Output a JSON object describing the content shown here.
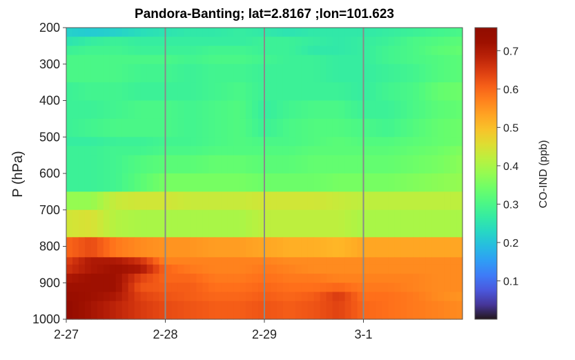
{
  "chart_data": {
    "type": "heatmap",
    "title": "Pandora-Banting; lat=2.8167 ;lon=101.623",
    "ylabel": "P (hPa)",
    "xlabel": "",
    "colorbar_label": "CO-IND (ppb)",
    "colormap": "turbo",
    "x_range_days": [
      0,
      4
    ],
    "x_ticks": [
      {
        "label": "2-27",
        "day": 0
      },
      {
        "label": "2-28",
        "day": 1
      },
      {
        "label": "2-29",
        "day": 2
      },
      {
        "label": "3-1",
        "day": 3
      }
    ],
    "vertical_lines_days": [
      1,
      2,
      3
    ],
    "y_range": [
      200,
      1000
    ],
    "y_reversed": true,
    "y_ticks": [
      200,
      300,
      400,
      500,
      600,
      700,
      800,
      900,
      1000
    ],
    "colorbar_range": [
      0,
      0.76
    ],
    "colorbar_ticks": [
      0.1,
      0.2,
      0.3,
      0.4,
      0.5,
      0.6,
      0.7
    ],
    "layer_edges_hpa": [
      200,
      225,
      250,
      275,
      300,
      350,
      400,
      450,
      500,
      525,
      550,
      600,
      650,
      700,
      775,
      830,
      850,
      875,
      900,
      925,
      950,
      1000
    ],
    "column_times_days": [
      0.0,
      0.25,
      0.5,
      0.75,
      1.0,
      1.25,
      1.5,
      1.75,
      2.0,
      2.25,
      2.5,
      2.75,
      3.0,
      3.25,
      3.5,
      3.75,
      4.0
    ],
    "values": [
      [
        0.22,
        0.21,
        0.22,
        0.24,
        0.25,
        0.26,
        0.26,
        0.27,
        0.26,
        0.25,
        0.26,
        0.26,
        0.26,
        0.27,
        0.28,
        0.29,
        0.3
      ],
      [
        0.25,
        0.27,
        0.28,
        0.27,
        0.27,
        0.27,
        0.27,
        0.27,
        0.28,
        0.28,
        0.27,
        0.26,
        0.27,
        0.28,
        0.3,
        0.31,
        0.32
      ],
      [
        0.28,
        0.29,
        0.29,
        0.28,
        0.28,
        0.28,
        0.29,
        0.29,
        0.28,
        0.28,
        0.26,
        0.26,
        0.27,
        0.29,
        0.3,
        0.32,
        0.33
      ],
      [
        0.3,
        0.3,
        0.3,
        0.3,
        0.3,
        0.29,
        0.3,
        0.3,
        0.29,
        0.28,
        0.28,
        0.27,
        0.27,
        0.29,
        0.3,
        0.31,
        0.32
      ],
      [
        0.3,
        0.3,
        0.3,
        0.29,
        0.29,
        0.28,
        0.29,
        0.29,
        0.28,
        0.28,
        0.28,
        0.27,
        0.27,
        0.28,
        0.29,
        0.31,
        0.32
      ],
      [
        0.28,
        0.29,
        0.29,
        0.28,
        0.28,
        0.28,
        0.29,
        0.3,
        0.28,
        0.28,
        0.28,
        0.28,
        0.27,
        0.29,
        0.3,
        0.33,
        0.34
      ],
      [
        0.28,
        0.28,
        0.29,
        0.3,
        0.3,
        0.29,
        0.3,
        0.31,
        0.27,
        0.29,
        0.3,
        0.3,
        0.28,
        0.28,
        0.3,
        0.32,
        0.33
      ],
      [
        0.28,
        0.29,
        0.3,
        0.3,
        0.3,
        0.29,
        0.3,
        0.31,
        0.28,
        0.3,
        0.31,
        0.31,
        0.3,
        0.29,
        0.31,
        0.33,
        0.34
      ],
      [
        0.27,
        0.27,
        0.28,
        0.28,
        0.29,
        0.29,
        0.3,
        0.31,
        0.3,
        0.3,
        0.31,
        0.32,
        0.31,
        0.31,
        0.32,
        0.33,
        0.34
      ],
      [
        0.28,
        0.28,
        0.29,
        0.29,
        0.3,
        0.3,
        0.31,
        0.31,
        0.31,
        0.31,
        0.32,
        0.32,
        0.32,
        0.32,
        0.33,
        0.34,
        0.36
      ],
      [
        0.28,
        0.28,
        0.29,
        0.31,
        0.32,
        0.32,
        0.33,
        0.33,
        0.32,
        0.32,
        0.33,
        0.33,
        0.33,
        0.33,
        0.34,
        0.35,
        0.37
      ],
      [
        0.28,
        0.28,
        0.29,
        0.32,
        0.35,
        0.35,
        0.35,
        0.35,
        0.34,
        0.34,
        0.34,
        0.35,
        0.35,
        0.35,
        0.36,
        0.37,
        0.38
      ],
      [
        0.38,
        0.38,
        0.43,
        0.44,
        0.44,
        0.43,
        0.43,
        0.43,
        0.44,
        0.44,
        0.44,
        0.43,
        0.42,
        0.42,
        0.42,
        0.42,
        0.42
      ],
      [
        0.44,
        0.45,
        0.41,
        0.4,
        0.4,
        0.4,
        0.4,
        0.4,
        0.42,
        0.42,
        0.42,
        0.42,
        0.4,
        0.4,
        0.4,
        0.4,
        0.4
      ],
      [
        0.6,
        0.63,
        0.58,
        0.56,
        0.55,
        0.55,
        0.54,
        0.54,
        0.53,
        0.52,
        0.52,
        0.51,
        0.53,
        0.53,
        0.53,
        0.53,
        0.53
      ],
      [
        0.64,
        0.7,
        0.7,
        0.66,
        0.57,
        0.57,
        0.57,
        0.57,
        0.57,
        0.56,
        0.56,
        0.56,
        0.56,
        0.56,
        0.56,
        0.56,
        0.56
      ],
      [
        0.66,
        0.7,
        0.72,
        0.7,
        0.6,
        0.58,
        0.57,
        0.57,
        0.58,
        0.57,
        0.56,
        0.56,
        0.56,
        0.56,
        0.56,
        0.56,
        0.56
      ],
      [
        0.7,
        0.72,
        0.72,
        0.64,
        0.6,
        0.6,
        0.58,
        0.58,
        0.59,
        0.58,
        0.58,
        0.57,
        0.57,
        0.57,
        0.57,
        0.56,
        0.56
      ],
      [
        0.72,
        0.72,
        0.72,
        0.62,
        0.61,
        0.61,
        0.59,
        0.59,
        0.6,
        0.59,
        0.59,
        0.6,
        0.58,
        0.58,
        0.57,
        0.56,
        0.56
      ],
      [
        0.73,
        0.72,
        0.7,
        0.64,
        0.62,
        0.61,
        0.6,
        0.6,
        0.61,
        0.6,
        0.61,
        0.65,
        0.59,
        0.59,
        0.58,
        0.56,
        0.55
      ],
      [
        0.74,
        0.71,
        0.68,
        0.65,
        0.63,
        0.62,
        0.61,
        0.61,
        0.62,
        0.61,
        0.62,
        0.64,
        0.6,
        0.59,
        0.58,
        0.57,
        0.56
      ]
    ],
    "grid": false,
    "legend": "colorbar-right"
  }
}
